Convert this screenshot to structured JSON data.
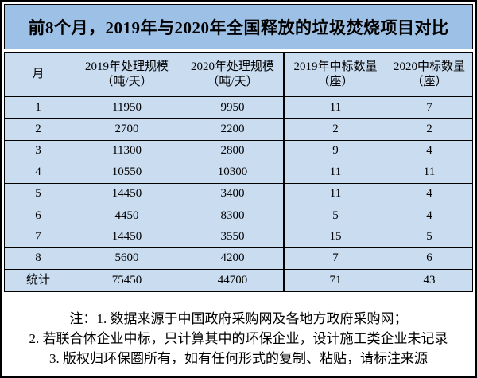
{
  "title": "前8个月，2019年与2020年全国释放的垃圾焚烧项目对比",
  "colors": {
    "title_bg": "#9DC0E6",
    "body_bg": "#C9DCF0",
    "border": "#000000"
  },
  "table": {
    "columns": [
      "月",
      "2019年处理规模",
      "2020年处理规模",
      "2019年中标数量",
      "2020中标数量"
    ],
    "units": [
      "",
      "（吨/天）",
      "（吨/天）",
      "（座）",
      "（座）"
    ],
    "rows": [
      [
        "1",
        "11950",
        "9950",
        "11",
        "7"
      ],
      [
        "2",
        "2700",
        "2200",
        "2",
        "2"
      ],
      [
        "3",
        "11300",
        "2800",
        "9",
        "4"
      ],
      [
        "4",
        "10550",
        "10300",
        "11",
        "11"
      ],
      [
        "5",
        "14450",
        "3400",
        "11",
        "4"
      ],
      [
        "6",
        "4450",
        "8300",
        "5",
        "4"
      ],
      [
        "7",
        "14450",
        "3550",
        "15",
        "5"
      ],
      [
        "8",
        "5600",
        "4200",
        "7",
        "6"
      ],
      [
        "统计",
        "75450",
        "44700",
        "71",
        "43"
      ]
    ]
  },
  "notes": [
    "注：1. 数据来源于中国政府采购网及各地方政府采购网；",
    "2. 若联合体企业中标，只计算其中的环保企业，设计施工类企业未记录",
    "3. 版权归环保圈所有，如有任何形式的复制、粘贴，请标注来源"
  ],
  "chart_data": {
    "type": "table",
    "title": "前8个月，2019年与2020年全国释放的垃圾焚烧项目对比",
    "categories": [
      "1",
      "2",
      "3",
      "4",
      "5",
      "6",
      "7",
      "8"
    ],
    "series": [
      {
        "name": "2019年处理规模（吨/天）",
        "values": [
          11950,
          2700,
          11300,
          10550,
          14450,
          4450,
          14450,
          5600
        ],
        "total": 75450
      },
      {
        "name": "2020年处理规模（吨/天）",
        "values": [
          9950,
          2200,
          2800,
          10300,
          3400,
          8300,
          3550,
          4200
        ],
        "total": 44700
      },
      {
        "name": "2019年中标数量（座）",
        "values": [
          11,
          2,
          9,
          11,
          11,
          5,
          15,
          7
        ],
        "total": 71
      },
      {
        "name": "2020中标数量（座）",
        "values": [
          7,
          2,
          4,
          11,
          4,
          4,
          5,
          6
        ],
        "total": 43
      }
    ],
    "total_row_label": "统计",
    "xlabel": "月",
    "notes": [
      "注：1. 数据来源于中国政府采购网及各地方政府采购网；",
      "2. 若联合体企业中标，只计算其中的环保企业，设计施工类企业未记录",
      "3. 版权归环保圈所有，如有任何形式的复制、粘贴，请标注来源"
    ]
  }
}
